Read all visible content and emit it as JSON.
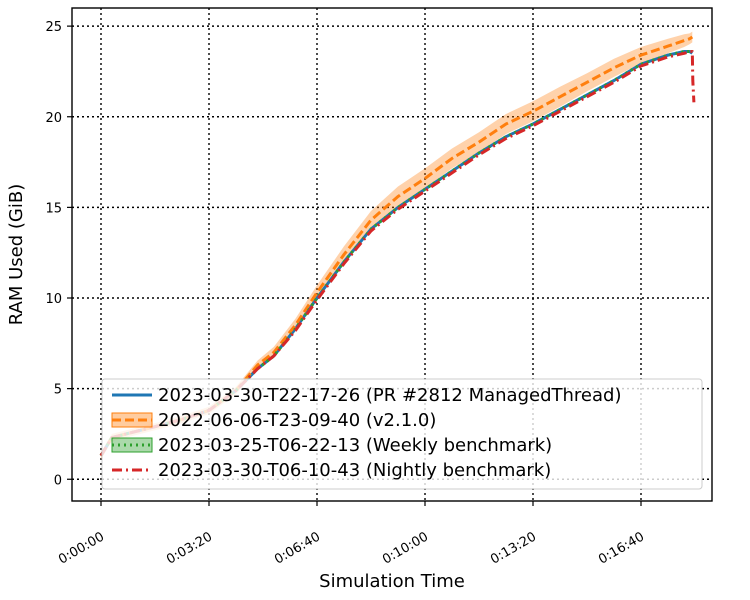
{
  "chart_data": {
    "type": "line",
    "title": "",
    "xlabel": "Simulation Time",
    "ylabel": "RAM Used (GiB)",
    "x_unit": "seconds of simulated time",
    "xlim": [
      -110,
      1910
    ],
    "ylim": [
      -1.2,
      26
    ],
    "xticks": [
      {
        "value": 0,
        "label": "0:00:00"
      },
      {
        "value": 200,
        "label": "0:03:20"
      },
      {
        "value": 400,
        "label": "0:06:40"
      },
      {
        "value": 600,
        "label": "0:10:00"
      },
      {
        "value": 800,
        "label": "0:13:20"
      },
      {
        "value": 1000,
        "label": "0:16:40"
      }
    ],
    "yticks": [
      {
        "value": 0,
        "label": "0"
      },
      {
        "value": 5,
        "label": "5"
      },
      {
        "value": 10,
        "label": "10"
      },
      {
        "value": 15,
        "label": "15"
      },
      {
        "value": 20,
        "label": "20"
      },
      {
        "value": 25,
        "label": "25"
      }
    ],
    "grid": true,
    "legend_position": "lower-right",
    "series": [
      {
        "name": "2023-03-30-T22-17-26 (PR #2812 ManagedThread)",
        "color": "#1f77b4",
        "style": "solid",
        "x": [
          0,
          20,
          60,
          100,
          150,
          200,
          250,
          290,
          320,
          360,
          400,
          450,
          500,
          550,
          600,
          650,
          700,
          750,
          800,
          850,
          900,
          950,
          1000,
          1050,
          1080,
          1090,
          1095
        ],
        "y": [
          1.3,
          2.3,
          2.6,
          2.9,
          3.3,
          3.8,
          4.9,
          6.1,
          6.8,
          8.3,
          10.0,
          12.0,
          13.8,
          15.0,
          16.0,
          17.0,
          18.0,
          18.9,
          19.6,
          20.4,
          21.2,
          22.0,
          22.9,
          23.4,
          23.6,
          23.6,
          23.5
        ]
      },
      {
        "name": "2022-06-06-T23-09-40 (v2.1.0)",
        "color": "#ff7f0e",
        "style": "dashed",
        "band": true,
        "x": [
          0,
          20,
          60,
          100,
          150,
          200,
          250,
          290,
          320,
          360,
          400,
          450,
          500,
          550,
          600,
          650,
          700,
          750,
          800,
          850,
          900,
          950,
          1000,
          1050,
          1080,
          1090,
          1095
        ],
        "y": [
          1.3,
          2.3,
          2.6,
          2.9,
          3.3,
          3.8,
          4.9,
          6.3,
          7.0,
          8.5,
          10.3,
          12.4,
          14.3,
          15.6,
          16.6,
          17.7,
          18.6,
          19.6,
          20.3,
          21.1,
          21.9,
          22.7,
          23.4,
          23.9,
          24.2,
          24.3,
          24.4
        ],
        "spread": [
          0.2,
          0.2,
          0.2,
          0.2,
          0.2,
          0.2,
          0.2,
          0.25,
          0.3,
          0.35,
          0.4,
          0.45,
          0.5,
          0.55,
          0.55,
          0.55,
          0.55,
          0.55,
          0.55,
          0.55,
          0.5,
          0.5,
          0.45,
          0.4,
          0.35,
          0.3,
          0.3
        ]
      },
      {
        "name": "2023-03-25-T06-22-13 (Weekly benchmark)",
        "color": "#2ca02c",
        "style": "dotted",
        "band": true,
        "x": [
          0,
          20,
          60,
          100,
          150,
          200,
          250,
          290,
          320,
          360,
          400,
          450,
          500,
          550,
          600,
          650,
          700,
          750,
          800,
          850,
          900,
          950,
          1000,
          1050,
          1080,
          1090,
          1095
        ],
        "y": [
          1.3,
          2.3,
          2.6,
          2.9,
          3.3,
          3.8,
          4.9,
          6.1,
          6.8,
          8.3,
          10.0,
          12.0,
          13.8,
          15.0,
          16.0,
          17.0,
          18.0,
          18.9,
          19.6,
          20.4,
          21.2,
          22.0,
          22.9,
          23.4,
          23.6,
          23.6,
          23.6
        ],
        "spread": [
          0.05,
          0.05,
          0.05,
          0.05,
          0.05,
          0.05,
          0.05,
          0.05,
          0.05,
          0.05,
          0.05,
          0.05,
          0.05,
          0.05,
          0.05,
          0.05,
          0.05,
          0.05,
          0.05,
          0.05,
          0.05,
          0.05,
          0.05,
          0.05,
          0.05,
          0.05,
          0.05
        ]
      },
      {
        "name": "2023-03-30-T06-10-43 (Nightly benchmark)",
        "color": "#d62728",
        "style": "dashdot",
        "x": [
          0,
          20,
          60,
          100,
          150,
          200,
          250,
          290,
          320,
          360,
          400,
          450,
          500,
          550,
          600,
          650,
          700,
          750,
          800,
          850,
          900,
          950,
          1000,
          1050,
          1080,
          1090,
          1095,
          1096,
          1098
        ],
        "y": [
          1.3,
          2.3,
          2.6,
          2.9,
          3.3,
          3.8,
          4.9,
          6.1,
          6.8,
          8.2,
          9.9,
          11.9,
          13.7,
          14.9,
          15.9,
          16.9,
          17.9,
          18.8,
          19.5,
          20.3,
          21.1,
          21.9,
          22.8,
          23.3,
          23.5,
          23.6,
          23.6,
          22.0,
          20.8
        ]
      }
    ]
  }
}
